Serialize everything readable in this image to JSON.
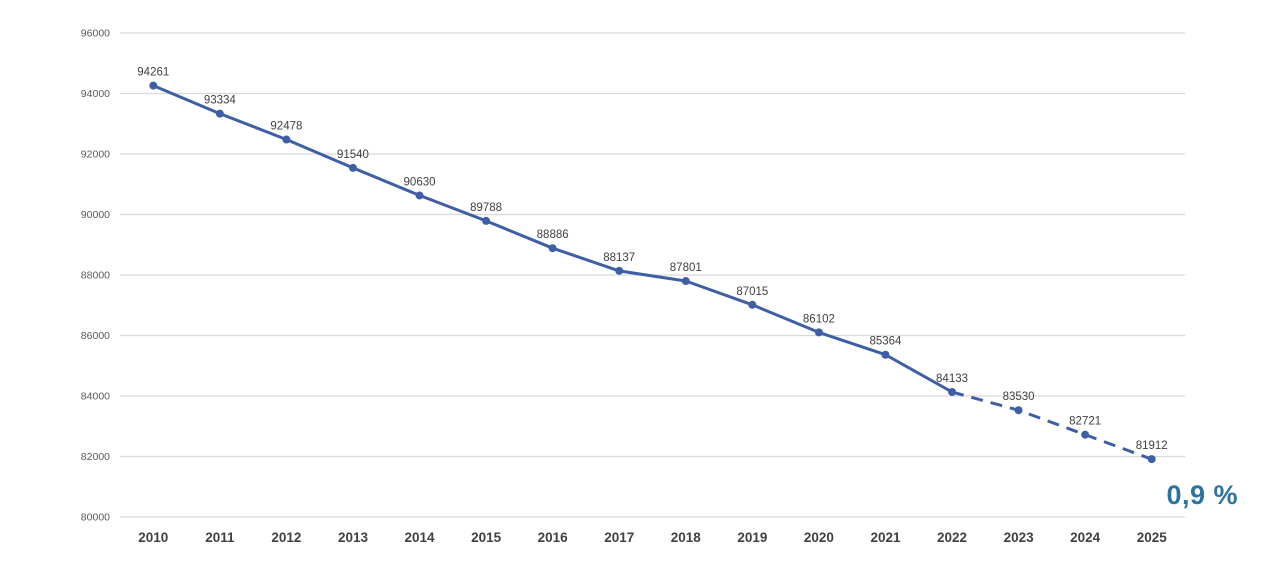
{
  "chart_data": {
    "type": "line",
    "title": "",
    "categories": [
      "2010",
      "2011",
      "2012",
      "2013",
      "2014",
      "2015",
      "2016",
      "2017",
      "2018",
      "2019",
      "2020",
      "2021",
      "2022",
      "2023",
      "2024",
      "2025"
    ],
    "series": [
      {
        "values": [
          94261,
          93334,
          92478,
          91540,
          90630,
          89788,
          88886,
          88137,
          87801,
          87015,
          86102,
          85364,
          84133,
          83530,
          82721,
          81912
        ],
        "solid_through_index": 12,
        "dashed_from_index": 12,
        "data_labels": [
          "94261",
          "93334",
          "92478",
          "91540",
          "90630",
          "89788",
          "88886",
          "88137",
          "87801",
          "87015",
          "86102",
          "85364",
          "84133",
          "83530",
          "82721",
          "81912"
        ]
      }
    ],
    "ylim": [
      80000,
      96000
    ],
    "ytick_step": 2000,
    "yticks": [
      "96000",
      "94000",
      "92000",
      "90000",
      "88000",
      "86000",
      "84000",
      "82000",
      "80000"
    ],
    "grid": true,
    "legend_position": "none",
    "annotation": {
      "text": "0,9 %"
    },
    "colors": {
      "line": "#3e5fa6",
      "marker": "#3e5fa6",
      "grid": "#d9d9d9",
      "ytick_text": "#595959",
      "xlabel_text": "#404040",
      "data_label_text": "#3f3f3f",
      "annotation_text": "#2d739f",
      "background": "#ffffff"
    }
  }
}
